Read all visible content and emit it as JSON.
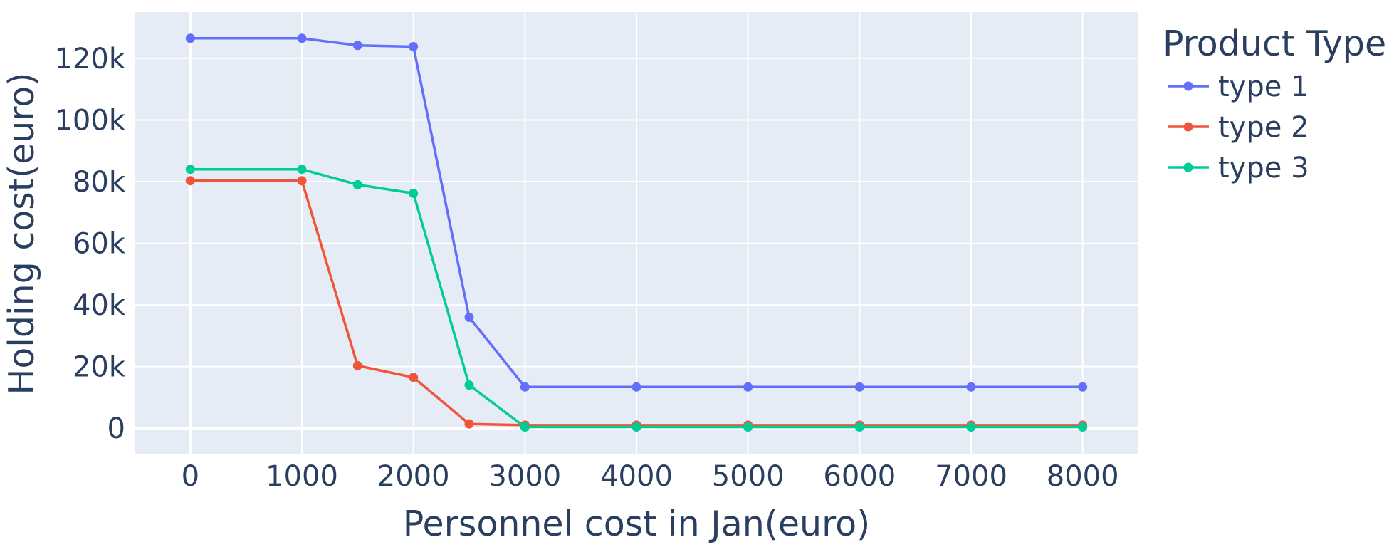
{
  "chart_data": {
    "type": "line",
    "title": "",
    "xlabel": "Personnel cost in Jan(euro)",
    "ylabel": "Holding cost(euro)",
    "xlim": [
      -500,
      8500
    ],
    "ylim": [
      -8500,
      135000
    ],
    "x_ticks": [
      0,
      1000,
      2000,
      3000,
      4000,
      5000,
      6000,
      7000,
      8000
    ],
    "x_tick_labels": [
      "0",
      "1000",
      "2000",
      "3000",
      "4000",
      "5000",
      "6000",
      "7000",
      "8000"
    ],
    "y_ticks": [
      0,
      20000,
      40000,
      60000,
      80000,
      100000,
      120000
    ],
    "y_tick_labels": [
      "0",
      "20k",
      "40k",
      "60k",
      "80k",
      "100k",
      "120k"
    ],
    "grid": true,
    "legend": {
      "title": "Product Type",
      "position": "top-right-outside"
    },
    "x": [
      0,
      1000,
      1500,
      2000,
      2500,
      3000,
      4000,
      5000,
      6000,
      7000,
      8000
    ],
    "series": [
      {
        "name": "type 1",
        "color": "#636efa",
        "values": [
          126500,
          126500,
          124200,
          123800,
          36000,
          13400,
          13400,
          13400,
          13400,
          13400,
          13400
        ]
      },
      {
        "name": "type 2",
        "color": "#ef553b",
        "values": [
          80300,
          80300,
          20300,
          16500,
          1400,
          1000,
          1000,
          1000,
          1000,
          1000,
          1000
        ]
      },
      {
        "name": "type 3",
        "color": "#00cc96",
        "values": [
          84000,
          84000,
          79000,
          76200,
          14000,
          400,
          400,
          400,
          400,
          400,
          400
        ]
      }
    ]
  }
}
